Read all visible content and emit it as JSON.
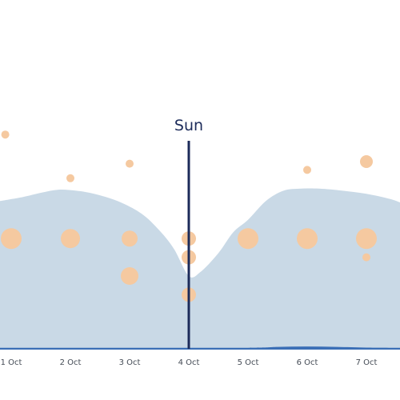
{
  "chart_data": {
    "type": "area",
    "title": "",
    "xlabel": "",
    "ylabel": "",
    "x_ticks": [
      "1 Oct",
      "2 Oct",
      "3 Oct",
      "4 Oct",
      "5 Oct",
      "6 Oct",
      "7 Oct"
    ],
    "xlim": [
      0.8,
      7.6
    ],
    "ylim": [
      0,
      100
    ],
    "grid": false,
    "legend": "none",
    "marker": {
      "x": 4,
      "label": "Sun"
    },
    "area_series": {
      "x": [
        0.8,
        1.2,
        1.5,
        1.8,
        2.1,
        2.4,
        2.8,
        3.2,
        3.5,
        3.75,
        4.0,
        4.2,
        4.5,
        4.75,
        5.0,
        5.3,
        5.6,
        5.9,
        6.2,
        6.6,
        7.0,
        7.4,
        7.6
      ],
      "values": [
        71,
        73,
        75,
        76.5,
        76,
        74.5,
        71,
        65,
        57,
        48,
        35,
        37,
        46,
        56,
        62,
        71,
        76,
        77,
        77,
        76,
        74.5,
        72,
        70
      ]
    },
    "baseline_series": {
      "x": [
        0.8,
        3.0,
        5.0,
        5.5,
        6.0,
        6.5,
        7.0,
        7.6
      ],
      "values": [
        0.5,
        0.5,
        0.5,
        0.9,
        1.1,
        0.9,
        0.6,
        0.5
      ]
    },
    "points": [
      {
        "x": 0.9,
        "y": 103,
        "size": 5
      },
      {
        "x": 1.0,
        "y": 53,
        "size": 13
      },
      {
        "x": 2.0,
        "y": 82,
        "size": 5
      },
      {
        "x": 2.0,
        "y": 53,
        "size": 12
      },
      {
        "x": 3.0,
        "y": 89,
        "size": 5
      },
      {
        "x": 3.0,
        "y": 53,
        "size": 10
      },
      {
        "x": 3.0,
        "y": 35,
        "size": 11
      },
      {
        "x": 4.0,
        "y": 53,
        "size": 9
      },
      {
        "x": 4.0,
        "y": 44,
        "size": 9
      },
      {
        "x": 4.0,
        "y": 26,
        "size": 9
      },
      {
        "x": 5.0,
        "y": 53,
        "size": 13
      },
      {
        "x": 6.0,
        "y": 86,
        "size": 5
      },
      {
        "x": 6.0,
        "y": 53,
        "size": 13
      },
      {
        "x": 6.0,
        "y": 50,
        "size": 5
      },
      {
        "x": 7.0,
        "y": 90,
        "size": 8
      },
      {
        "x": 7.0,
        "y": 53,
        "size": 13
      },
      {
        "x": 7.0,
        "y": 44,
        "size": 5
      }
    ],
    "colors": {
      "area": "#c9d9e6",
      "baseline": "#3b6fb6",
      "points": "#f5c9a0",
      "marker": "#1c2b5a"
    }
  }
}
